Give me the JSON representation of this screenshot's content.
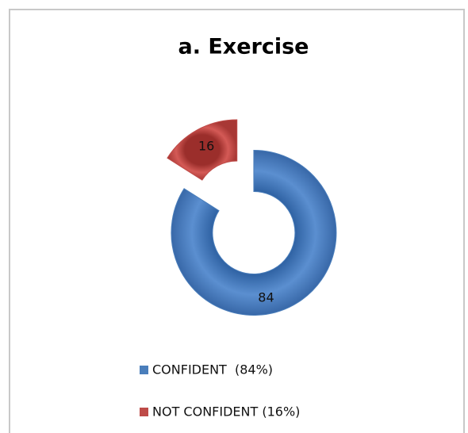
{
  "chart_data": {
    "type": "donut",
    "title": "a. Exercise",
    "categories": [
      "CONFIDENT  (84%)",
      "NOT CONFIDENT (16%)"
    ],
    "values": [
      84,
      16
    ],
    "colors": [
      "#4a7ebb",
      "#be4b48"
    ]
  }
}
